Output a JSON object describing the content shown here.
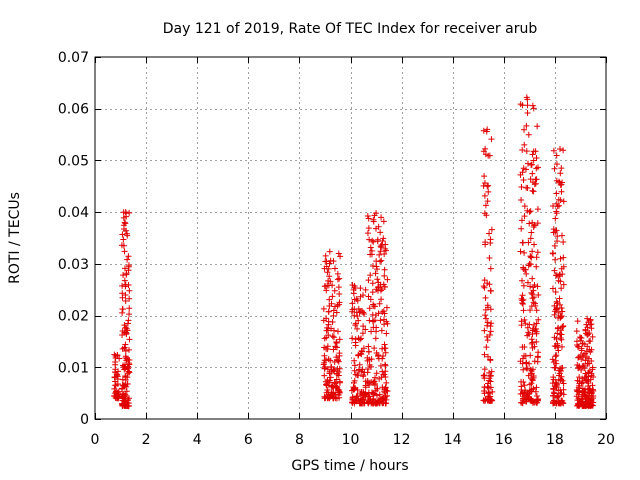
{
  "chart_data": {
    "type": "scatter",
    "title": "Day 121 of 2019, Rate Of TEC Index for receiver arub",
    "xlabel": "GPS time / hours",
    "ylabel": "ROTI / TECUs",
    "xlim": [
      0,
      20
    ],
    "ylim": [
      0,
      0.07
    ],
    "xticks": [
      0,
      2,
      4,
      6,
      8,
      10,
      12,
      14,
      16,
      18,
      20
    ],
    "yticks": [
      0,
      0.01,
      0.02,
      0.03,
      0.04,
      0.05,
      0.06,
      0.07
    ],
    "xtick_labels": [
      "0",
      "2",
      "4",
      "6",
      "8",
      "10",
      "12",
      "14",
      "16",
      "18",
      "20"
    ],
    "ytick_labels": [
      "0",
      "0.01",
      "0.02",
      "0.03",
      "0.04",
      "0.05",
      "0.06",
      "0.07"
    ],
    "grid": true,
    "marker": "+",
    "color": "#e00000",
    "clusters": [
      {
        "x_min": 0.75,
        "x_max": 0.95,
        "y_min": 0.004,
        "y_max": 0.0125,
        "count": 40
      },
      {
        "x_min": 1.05,
        "x_max": 1.35,
        "y_min": 0.0025,
        "y_max": 0.04,
        "count": 130
      },
      {
        "x_min": 8.95,
        "x_max": 9.6,
        "y_min": 0.004,
        "y_max": 0.0325,
        "count": 160
      },
      {
        "x_min": 10.05,
        "x_max": 10.6,
        "y_min": 0.003,
        "y_max": 0.026,
        "count": 110
      },
      {
        "x_min": 10.65,
        "x_max": 11.45,
        "y_min": 0.003,
        "y_max": 0.04,
        "count": 200
      },
      {
        "x_min": 15.2,
        "x_max": 15.55,
        "y_min": 0.0035,
        "y_max": 0.056,
        "count": 90
      },
      {
        "x_min": 16.65,
        "x_max": 17.35,
        "y_min": 0.003,
        "y_max": 0.062,
        "count": 210
      },
      {
        "x_min": 17.9,
        "x_max": 18.35,
        "y_min": 0.003,
        "y_max": 0.052,
        "count": 160
      },
      {
        "x_min": 18.85,
        "x_max": 19.5,
        "y_min": 0.0025,
        "y_max": 0.0195,
        "count": 200
      }
    ],
    "notable_points": [
      {
        "x": 16.9,
        "y": 0.0622
      },
      {
        "x": 15.35,
        "y": 0.056
      },
      {
        "x": 16.9,
        "y": 0.0518
      },
      {
        "x": 18.2,
        "y": 0.0522
      },
      {
        "x": 15.3,
        "y": 0.0512
      },
      {
        "x": 18.25,
        "y": 0.0485
      },
      {
        "x": 15.35,
        "y": 0.045
      },
      {
        "x": 15.3,
        "y": 0.0413
      },
      {
        "x": 1.2,
        "y": 0.04
      },
      {
        "x": 11.0,
        "y": 0.0398
      },
      {
        "x": 17.05,
        "y": 0.0402
      }
    ]
  }
}
